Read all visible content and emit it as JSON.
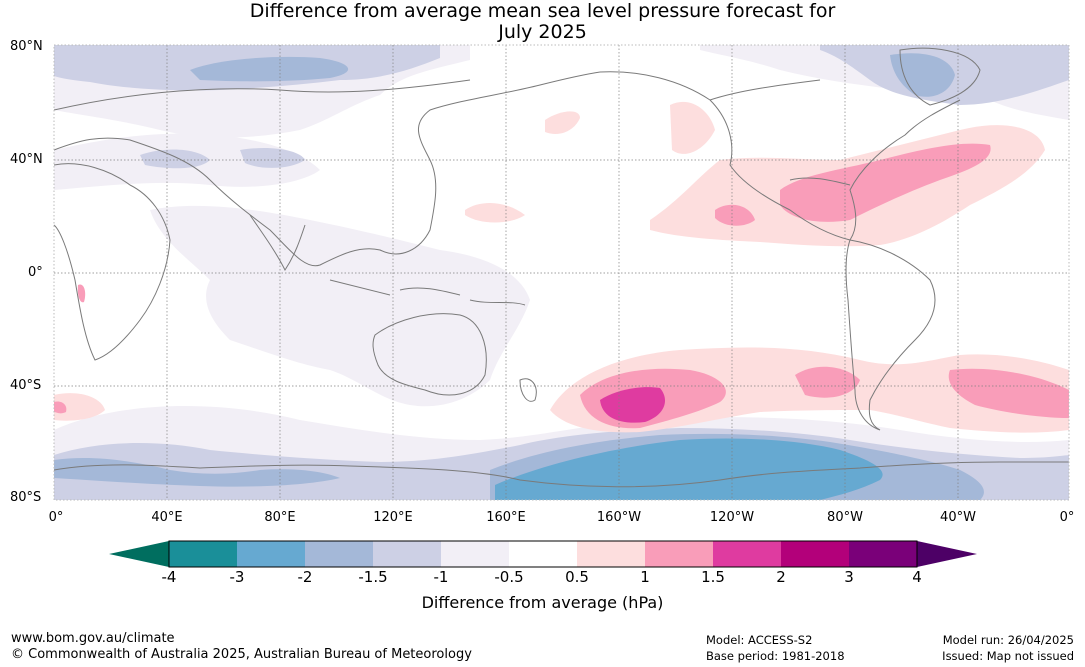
{
  "title": {
    "line1": "Difference from average mean sea level pressure forecast for",
    "line2": "July 2025"
  },
  "map": {
    "lat_labels": [
      "80°N",
      "40°N",
      "0°",
      "40°S",
      "80°S"
    ],
    "lon_labels": [
      "0°",
      "40°E",
      "80°E",
      "120°E",
      "160°E",
      "160°W",
      "120°W",
      "80°W",
      "40°W",
      "0°"
    ]
  },
  "colorbar": {
    "ticks": [
      "-4",
      "-3",
      "-2",
      "-1.5",
      "-1",
      "-0.5",
      "0.5",
      "1",
      "1.5",
      "2",
      "3",
      "4"
    ],
    "colors": {
      "below_min": "#006e5f",
      "bins": [
        "#1a8f99",
        "#66a9d1",
        "#a4b8d8",
        "#cdd0e5",
        "#f2eff6",
        "#ffffff",
        "#fddede",
        "#f99db9",
        "#df3ba0",
        "#b3007a",
        "#7a0079"
      ],
      "above_max": "#4d0066"
    },
    "label": "Difference from average (hPa)"
  },
  "footer": {
    "website": "www.bom.gov.au/climate",
    "copyright": "© Commonwealth of Australia 2025, Australian Bureau of Meteorology",
    "model": "Model: ACCESS-S2",
    "base_period": "Base period: 1981-2018",
    "model_run": "Model run: 26/04/2025",
    "issued": "Issued: Map not issued"
  }
}
